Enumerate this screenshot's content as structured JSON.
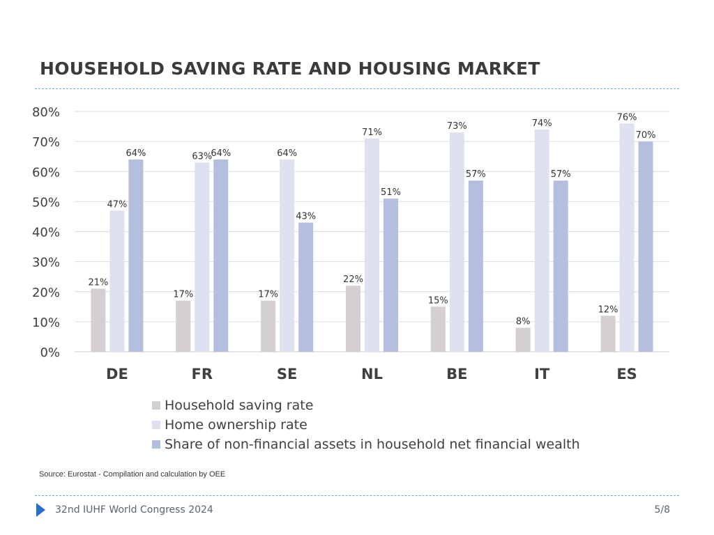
{
  "slide": {
    "title": "HOUSEHOLD SAVING RATE AND HOUSING MARKET",
    "source": "Source: Eurostat - Compilation and calculation by OEE",
    "footer": "32nd IUHF World Congress 2024",
    "page": "5/8",
    "footer_icon": "play-triangle-icon",
    "accent_color": "#2a6fc9"
  },
  "chart_data": {
    "type": "bar",
    "categories": [
      "DE",
      "FR",
      "SE",
      "NL",
      "BE",
      "IT",
      "ES"
    ],
    "series": [
      {
        "name": "Household saving rate",
        "values": [
          21,
          17,
          17,
          22,
          15,
          8,
          12
        ],
        "color": "#d3cfd2"
      },
      {
        "name": "Home ownership rate",
        "values": [
          47,
          63,
          64,
          71,
          73,
          74,
          76
        ],
        "color": "#dde1f0"
      },
      {
        "name": "Share of non-financial assets in household net financial wealth",
        "values": [
          64,
          64,
          43,
          51,
          57,
          57,
          70
        ],
        "color": "#b4bfe0"
      }
    ],
    "ylim": [
      0,
      80
    ],
    "yticks": [
      0,
      10,
      20,
      30,
      40,
      50,
      60,
      70,
      80
    ],
    "ytick_labels": [
      "0%",
      "10%",
      "20%",
      "30%",
      "40%",
      "50%",
      "60%",
      "70%",
      "80%"
    ],
    "value_suffix": "%",
    "grid": true,
    "legend_position": "bottom-center"
  }
}
